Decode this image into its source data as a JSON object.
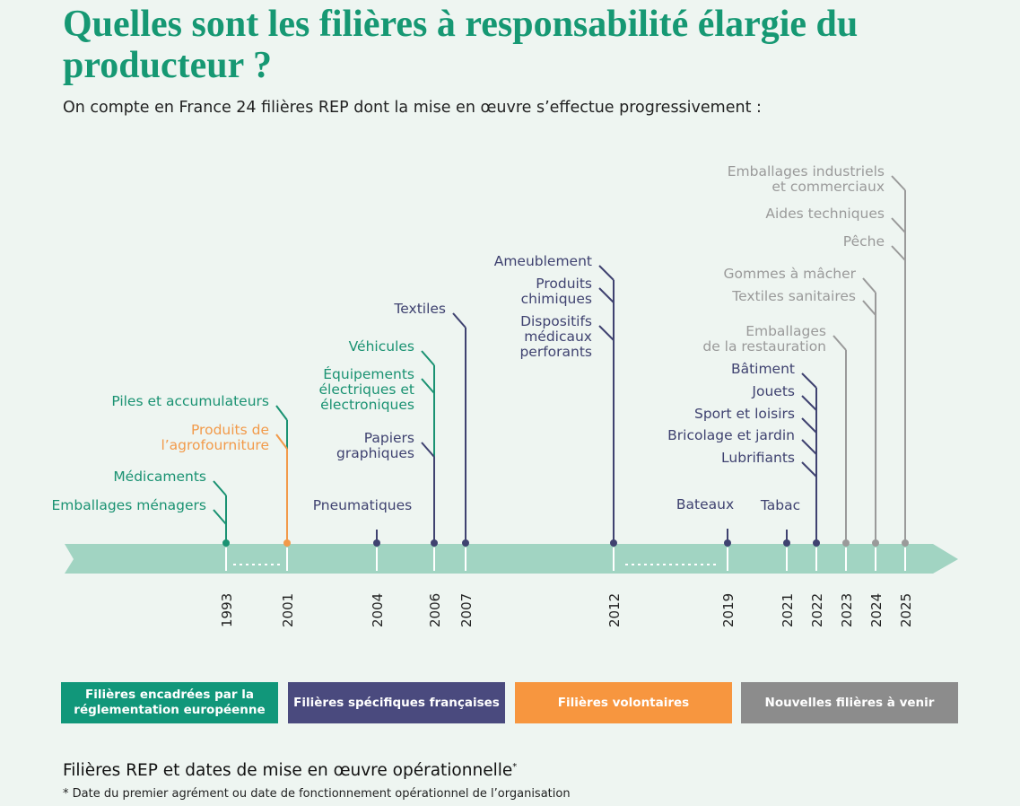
{
  "header": {
    "title": "Quelles sont les filières à responsabilité élargie du producteur ?",
    "subtitle": "On compte en France 24 filières REP dont la mise en œuvre s’effectue progressivement :"
  },
  "timeline": {
    "years": [
      {
        "year": 1993,
        "entries": [
          {
            "label": "Médicaments",
            "color": "#1a9272"
          },
          {
            "label": "Emballages ménagers",
            "color": "#1a9272"
          }
        ]
      },
      {
        "year": 2001,
        "entries": [
          {
            "label": "Piles et accumulateurs",
            "color": "#1a9272"
          },
          {
            "label": "Produits de\nl’agrofourniture",
            "color": "#f29a4a"
          }
        ]
      },
      {
        "year": 2004,
        "entries": [
          {
            "label": "Pneumatiques",
            "color": "#3f4270"
          }
        ]
      },
      {
        "year": 2006,
        "entries": [
          {
            "label": "Véhicules",
            "color": "#1a9272"
          },
          {
            "label": "Équipements\nélectriques et\nélectroniques",
            "color": "#1a9272"
          },
          {
            "label": "Papiers\ngraphiques",
            "color": "#3f4270"
          }
        ]
      },
      {
        "year": 2007,
        "entries": [
          {
            "label": "Textiles",
            "color": "#3f4270"
          }
        ]
      },
      {
        "year": 2012,
        "entries": [
          {
            "label": "Ameublement",
            "color": "#3f4270"
          },
          {
            "label": "Produits\nchimiques",
            "color": "#3f4270"
          },
          {
            "label": "Dispositifs\nmédicaux\nperforants",
            "color": "#3f4270"
          }
        ]
      },
      {
        "year": 2019,
        "entries": [
          {
            "label": "Bateaux",
            "color": "#3f4270"
          }
        ]
      },
      {
        "year": 2021,
        "entries": [
          {
            "label": "Tabac",
            "color": "#3f4270"
          }
        ]
      },
      {
        "year": 2022,
        "entries": [
          {
            "label": "Bâtiment",
            "color": "#3f4270"
          },
          {
            "label": "Jouets",
            "color": "#3f4270"
          },
          {
            "label": "Sport et loisirs",
            "color": "#3f4270"
          },
          {
            "label": "Bricolage et jardin",
            "color": "#3f4270"
          },
          {
            "label": "Lubrifiants",
            "color": "#3f4270"
          }
        ]
      },
      {
        "year": 2023,
        "entries": [
          {
            "label": "Emballages\nde la restauration",
            "color": "#9a9a9a"
          }
        ]
      },
      {
        "year": 2024,
        "entries": [
          {
            "label": "Gommes à mâcher",
            "color": "#9a9a9a"
          },
          {
            "label": "Textiles sanitaires",
            "color": "#9a9a9a"
          }
        ]
      },
      {
        "year": 2025,
        "entries": [
          {
            "label": "Emballages industriels\net commerciaux",
            "color": "#9a9a9a"
          },
          {
            "label": "Aides techniques",
            "color": "#9a9a9a"
          },
          {
            "label": "Pêche",
            "color": "#9a9a9a"
          }
        ]
      }
    ]
  },
  "legend": [
    {
      "label": "Filières encadrées par la\nréglementation européenne",
      "color": "#11977a"
    },
    {
      "label": "Filières spécifiques françaises",
      "color": "#4a4a7e"
    },
    {
      "label": "Filières volontaires",
      "color": "#f7963f"
    },
    {
      "label": "Nouvelles filières à venir",
      "color": "#8c8c8c"
    }
  ],
  "footer": {
    "title": "Filières REP et dates de mise en œuvre opérationnelle",
    "title_mark": "*",
    "note": "* Date du premier agrément ou date de fonctionnement opérationnel de l’organisation"
  }
}
